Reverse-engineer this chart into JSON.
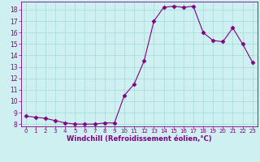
{
  "x": [
    0,
    1,
    2,
    3,
    4,
    5,
    6,
    7,
    8,
    9,
    10,
    11,
    12,
    13,
    14,
    15,
    16,
    17,
    18,
    19,
    20,
    21,
    22,
    23
  ],
  "y": [
    8.7,
    8.6,
    8.5,
    8.3,
    8.1,
    8.0,
    8.0,
    8.0,
    8.1,
    8.1,
    10.5,
    11.5,
    13.5,
    17.0,
    18.2,
    18.3,
    18.2,
    18.3,
    16.0,
    15.3,
    15.2,
    16.4,
    15.0,
    13.4
  ],
  "line_color": "#800080",
  "marker": "D",
  "marker_size": 2.5,
  "bg_color": "#cff0f0",
  "grid_color": "#aadddd",
  "xlabel": "Windchill (Refroidissement éolien,°C)",
  "xlabel_color": "#800080",
  "tick_color": "#800080",
  "ylim": [
    7.8,
    18.7
  ],
  "xlim": [
    -0.5,
    23.5
  ],
  "yticks": [
    8,
    9,
    10,
    11,
    12,
    13,
    14,
    15,
    16,
    17,
    18
  ],
  "xticks": [
    0,
    1,
    2,
    3,
    4,
    5,
    6,
    7,
    8,
    9,
    10,
    11,
    12,
    13,
    14,
    15,
    16,
    17,
    18,
    19,
    20,
    21,
    22,
    23
  ]
}
